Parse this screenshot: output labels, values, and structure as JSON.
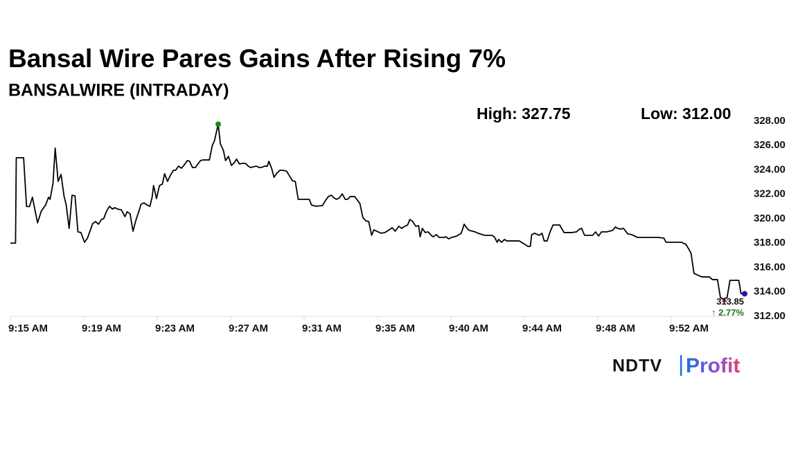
{
  "chart_data": {
    "type": "line",
    "title": "Bansal Wire Pares Gains After Rising 7%",
    "subtitle": "BANSALWIRE (INTRADAY)",
    "annotations": {
      "high": "High: 327.75",
      "low": "Low: 312.00",
      "last": "313.85",
      "change": "↑ 2.77%"
    },
    "brand": {
      "left": "NDTV",
      "separator": "|",
      "right": "Profit"
    },
    "color": "#000000",
    "high_color": "#1a8a1a",
    "last_color": "#1a1aa8",
    "change_color": "#1a7a1a",
    "grid": false,
    "xlim": [
      0,
      100
    ],
    "xticks": [
      {
        "value": 0,
        "label": "9:15 AM"
      },
      {
        "value": 10,
        "label": "9:19 AM"
      },
      {
        "value": 20,
        "label": "9:23 AM"
      },
      {
        "value": 30,
        "label": "9:27 AM"
      },
      {
        "value": 40,
        "label": "9:31 AM"
      },
      {
        "value": 50,
        "label": "9:35 AM"
      },
      {
        "value": 60,
        "label": "9:40 AM"
      },
      {
        "value": 70,
        "label": "9:44 AM"
      },
      {
        "value": 80,
        "label": "9:48 AM"
      },
      {
        "value": 90,
        "label": "9:52 AM"
      }
    ],
    "ylim": [
      312,
      328
    ],
    "yticks": [
      {
        "value": 312,
        "label": "312.00"
      },
      {
        "value": 314,
        "label": "314.00"
      },
      {
        "value": 316,
        "label": "316.00"
      },
      {
        "value": 318,
        "label": "318.00"
      },
      {
        "value": 320,
        "label": "320.00"
      },
      {
        "value": 322,
        "label": "322.00"
      },
      {
        "value": 324,
        "label": "324.00"
      },
      {
        "value": 326,
        "label": "326.00"
      },
      {
        "value": 328,
        "label": "328.00"
      }
    ],
    "x": [
      0.0,
      0.7,
      0.8,
      1.8,
      2.2,
      2.6,
      3.0,
      3.7,
      4.2,
      4.8,
      5.2,
      5.4,
      5.8,
      6.1,
      6.5,
      6.9,
      7.3,
      7.6,
      8.0,
      8.4,
      8.8,
      9.2,
      9.6,
      10.1,
      10.5,
      10.8,
      11.2,
      11.6,
      12.0,
      12.4,
      12.7,
      13.1,
      13.5,
      13.9,
      14.2,
      14.6,
      15.1,
      15.6,
      15.9,
      16.3,
      16.7,
      17.1,
      17.5,
      17.8,
      18.2,
      18.6,
      19.0,
      19.3,
      19.5,
      19.9,
      20.3,
      20.7,
      21.0,
      21.4,
      21.8,
      22.2,
      22.5,
      22.9,
      23.3,
      23.7,
      24.1,
      24.4,
      24.8,
      25.2,
      25.6,
      25.9,
      26.3,
      27.1,
      27.5,
      27.8,
      28.3,
      28.6,
      29.0,
      29.3,
      29.7,
      30.1,
      30.5,
      30.8,
      31.2,
      31.6,
      32.0,
      32.4,
      32.7,
      33.5,
      33.9,
      34.2,
      34.6,
      35.0,
      35.2,
      35.6,
      35.9,
      36.3,
      36.7,
      37.1,
      37.6,
      38.0,
      38.4,
      38.8,
      39.2,
      39.7,
      40.7,
      41.0,
      41.6,
      42.5,
      42.9,
      43.3,
      43.7,
      44.1,
      44.4,
      44.8,
      45.2,
      45.6,
      45.9,
      46.3,
      46.9,
      47.3,
      47.6,
      48.0,
      48.4,
      48.8,
      49.2,
      49.5,
      50.1,
      50.5,
      51.0,
      51.6,
      52.0,
      52.4,
      52.9,
      53.3,
      53.7,
      54.1,
      54.4,
      54.8,
      55.2,
      55.6,
      55.8,
      56.1,
      56.5,
      56.9,
      57.3,
      57.6,
      58.0,
      58.4,
      59.0,
      59.3,
      59.7,
      60.1,
      60.8,
      61.4,
      61.8,
      62.2,
      62.5,
      63.3,
      63.7,
      64.6,
      65.6,
      65.9,
      66.3,
      66.5,
      66.9,
      67.3,
      67.6,
      68.4,
      69.3,
      69.9,
      70.5,
      70.8,
      71.0,
      71.4,
      72.0,
      72.4,
      72.7,
      73.1,
      73.5,
      73.9,
      74.8,
      75.4,
      76.5,
      77.1,
      77.5,
      77.8,
      78.2,
      79.3,
      79.7,
      80.1,
      80.5,
      81.2,
      82.0,
      82.4,
      82.7,
      83.1,
      83.5,
      84.1,
      84.6,
      85.4,
      86.1,
      88.2,
      89.0,
      89.3,
      91.4,
      92.0,
      92.4,
      92.7,
      93.1,
      93.7,
      94.2,
      95.2,
      95.6,
      96.3,
      96.7,
      97.1,
      97.3,
      97.6,
      98.0,
      99.2,
      99.5,
      100.0
    ],
    "values": [
      318.0,
      318.0,
      325.0,
      325.0,
      321.0,
      321.0,
      321.76,
      319.66,
      320.62,
      321.13,
      321.76,
      321.59,
      322.89,
      325.79,
      323.06,
      323.63,
      321.87,
      321.13,
      319.21,
      321.93,
      321.87,
      318.92,
      318.87,
      318.07,
      318.41,
      318.92,
      319.6,
      319.77,
      319.55,
      319.94,
      320.0,
      320.62,
      321.02,
      320.79,
      320.91,
      320.79,
      320.74,
      320.17,
      320.57,
      320.4,
      318.98,
      319.89,
      320.62,
      321.19,
      321.3,
      321.13,
      321.02,
      321.76,
      322.72,
      321.65,
      322.72,
      322.84,
      323.69,
      323.06,
      323.57,
      323.97,
      323.97,
      324.31,
      324.14,
      324.43,
      324.77,
      324.71,
      324.2,
      324.2,
      324.54,
      324.77,
      324.82,
      324.82,
      326.01,
      326.41,
      327.75,
      326.13,
      325.62,
      324.77,
      325.11,
      324.37,
      324.6,
      324.88,
      324.48,
      324.54,
      324.54,
      324.31,
      324.2,
      324.31,
      324.2,
      324.2,
      324.31,
      324.31,
      324.71,
      324.09,
      323.4,
      323.74,
      323.97,
      323.97,
      323.91,
      323.52,
      323.12,
      323.06,
      321.59,
      321.59,
      321.59,
      321.13,
      321.02,
      321.08,
      321.48,
      321.82,
      321.93,
      321.7,
      321.59,
      321.7,
      322.04,
      321.59,
      321.59,
      321.82,
      321.82,
      321.48,
      321.25,
      320.11,
      319.83,
      319.77,
      318.64,
      319.09,
      318.92,
      318.81,
      318.87,
      319.09,
      319.26,
      318.98,
      319.38,
      319.21,
      319.38,
      319.49,
      319.94,
      319.77,
      319.38,
      319.43,
      318.52,
      319.21,
      318.87,
      318.92,
      318.64,
      318.52,
      318.7,
      318.47,
      318.47,
      318.52,
      318.35,
      318.47,
      318.58,
      318.81,
      319.55,
      319.21,
      319.04,
      318.92,
      318.81,
      318.64,
      318.64,
      318.52,
      318.07,
      318.3,
      318.07,
      318.3,
      318.18,
      318.18,
      318.18,
      317.96,
      317.73,
      317.73,
      318.7,
      318.81,
      318.64,
      318.81,
      318.18,
      318.18,
      318.92,
      319.49,
      319.49,
      318.87,
      318.87,
      318.92,
      319.15,
      319.21,
      318.64,
      318.64,
      318.92,
      318.58,
      318.92,
      318.92,
      319.04,
      319.32,
      319.21,
      319.15,
      319.21,
      318.75,
      318.7,
      318.47,
      318.47,
      318.47,
      318.41,
      318.07,
      318.07,
      317.9,
      317.5,
      317.16,
      315.52,
      315.35,
      315.23,
      315.23,
      315.01,
      315.01,
      313.53,
      313.42,
      313.47,
      313.53,
      314.95,
      314.95,
      313.87,
      313.85
    ]
  }
}
